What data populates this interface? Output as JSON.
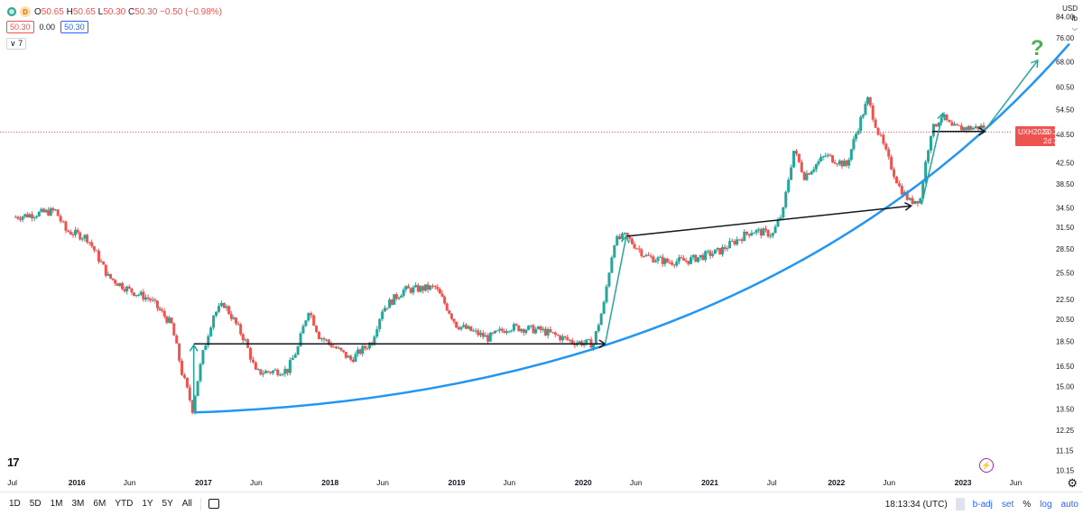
{
  "legend": {
    "dot_label": "D",
    "open_k": "O",
    "open_v": "50.65",
    "high_k": "H",
    "high_v": "50.65",
    "low_k": "L",
    "low_v": "50.30",
    "close_k": "C",
    "close_v": "50.30",
    "change": "−0.50 (−0.98%)"
  },
  "values_row": {
    "bid": "50.30",
    "spread": "0.00",
    "ask": "50.30"
  },
  "collapse_label": "∨ 7",
  "price_scale": {
    "currency": "USD",
    "unit": "lb"
  },
  "price_tag": {
    "symbol": "UXH2023",
    "price": "50.30",
    "countdown": "2d 3h"
  },
  "bottom_bar": {
    "ranges": [
      "1D",
      "5D",
      "1M",
      "3M",
      "6M",
      "YTD",
      "1Y",
      "5Y",
      "All"
    ],
    "clock": "18:13:34 (UTC)",
    "adj": "b-adj",
    "set": "set",
    "pct": "%",
    "log": "log",
    "auto": "auto"
  },
  "colors": {
    "up": "#26a69a",
    "down": "#ef5350",
    "curve": "#2196f3",
    "question": "#4caf50",
    "teal_arrow": "#26a69a"
  },
  "chart_data": {
    "type": "candlestick",
    "scale": "log",
    "ylim": [
      9.8,
      87
    ],
    "y_ticks": [
      "84.00",
      "76.00",
      "68.00",
      "60.50",
      "54.50",
      "48.50",
      "42.50",
      "38.50",
      "34.50",
      "31.50",
      "28.50",
      "25.50",
      "22.50",
      "20.50",
      "18.50",
      "16.50",
      "15.00",
      "13.50",
      "12.25",
      "11.15",
      "10.15"
    ],
    "x_ticks": [
      "Jul",
      "2016",
      "Jun",
      "2017",
      "Jun",
      "2018",
      "Jun",
      "2019",
      "Jun",
      "2020",
      "Jun",
      "2021",
      "Jul",
      "2022",
      "Jun",
      "2023",
      "Jun"
    ],
    "last_price_line": 50.3,
    "question_mark": "?",
    "price_path": [
      [
        "2015-07",
        33.0
      ],
      [
        "2015-09",
        33.5
      ],
      [
        "2015-11",
        34.0
      ],
      [
        "2015-12",
        31.0
      ],
      [
        "2016-02",
        30.0
      ],
      [
        "2016-04",
        25.0
      ],
      [
        "2016-06",
        23.5
      ],
      [
        "2016-08",
        22.5
      ],
      [
        "2016-10",
        20.0
      ],
      [
        "2016-11",
        16.0
      ],
      [
        "2016-12",
        13.5
      ],
      [
        "2017-01",
        17.5
      ],
      [
        "2017-02",
        21.0
      ],
      [
        "2017-03",
        22.0
      ],
      [
        "2017-05",
        18.5
      ],
      [
        "2017-06",
        16.0
      ],
      [
        "2017-09",
        16.2
      ],
      [
        "2017-10",
        18.0
      ],
      [
        "2017-11",
        21.5
      ],
      [
        "2017-12",
        19.0
      ],
      [
        "2018-03",
        17.0
      ],
      [
        "2018-05",
        18.5
      ],
      [
        "2018-06",
        21.5
      ],
      [
        "2018-08",
        23.5
      ],
      [
        "2018-11",
        23.8
      ],
      [
        "2019-01",
        20.0
      ],
      [
        "2019-04",
        18.8
      ],
      [
        "2019-06",
        19.8
      ],
      [
        "2019-09",
        19.5
      ],
      [
        "2019-12",
        18.5
      ],
      [
        "2020-02",
        18.3
      ],
      [
        "2020-03",
        22.0
      ],
      [
        "2020-04",
        29.5
      ],
      [
        "2020-05",
        30.2
      ],
      [
        "2020-07",
        27.5
      ],
      [
        "2020-09",
        26.8
      ],
      [
        "2020-11",
        27.0
      ],
      [
        "2021-02",
        28.2
      ],
      [
        "2021-05",
        31.0
      ],
      [
        "2021-07",
        30.5
      ],
      [
        "2021-08",
        34.0
      ],
      [
        "2021-09",
        45.0
      ],
      [
        "2021-10",
        40.0
      ],
      [
        "2021-12",
        44.0
      ],
      [
        "2022-02",
        42.0
      ],
      [
        "2022-04",
        57.0
      ],
      [
        "2022-05",
        49.0
      ],
      [
        "2022-06",
        43.0
      ],
      [
        "2022-07",
        38.0
      ],
      [
        "2022-08",
        35.5
      ],
      [
        "2022-09",
        36.0
      ],
      [
        "2022-10",
        49.0
      ],
      [
        "2022-11",
        53.0
      ],
      [
        "2022-12",
        50.0
      ],
      [
        "2023-02",
        50.0
      ],
      [
        "2023-03",
        50.3
      ]
    ]
  }
}
